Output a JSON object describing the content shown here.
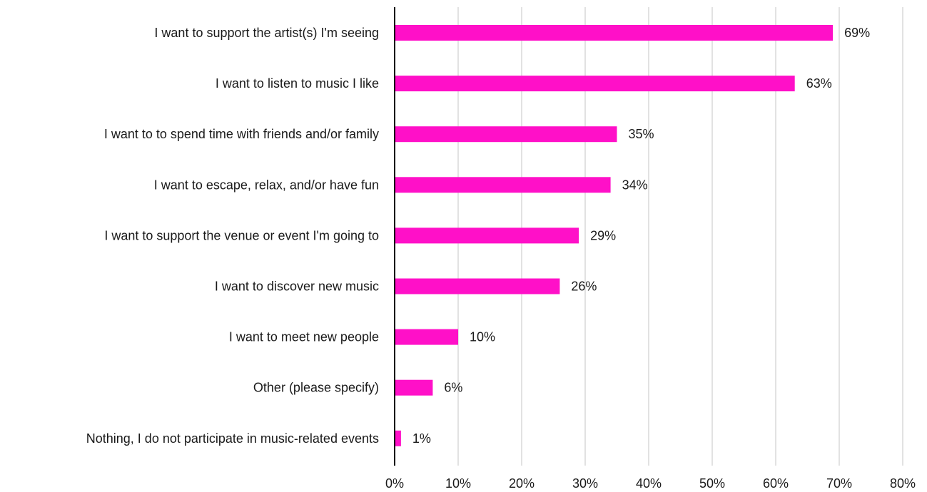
{
  "chart_data": {
    "type": "bar",
    "orientation": "horizontal",
    "categories": [
      "I want to support the artist(s) I'm seeing",
      "I want to listen to music I like",
      "I want to to spend time with friends and/or family",
      "I want to escape, relax, and/or have fun",
      "I want to support the venue or event I'm going to",
      "I want to discover new music",
      "I want to meet new people",
      "Other (please specify)",
      "Nothing, I do not participate in music-related events"
    ],
    "values": [
      69,
      63,
      35,
      34,
      29,
      26,
      10,
      6,
      1
    ],
    "data_labels": [
      "69%",
      "63%",
      "35%",
      "34%",
      "29%",
      "26%",
      "10%",
      "6%",
      "1%"
    ],
    "xlim": [
      0,
      80
    ],
    "x_ticks": [
      0,
      10,
      20,
      30,
      40,
      50,
      60,
      70,
      80
    ],
    "x_tick_labels": [
      "0%",
      "10%",
      "20%",
      "30%",
      "40%",
      "50%",
      "60%",
      "70%",
      "80%"
    ],
    "title": "",
    "xlabel": "",
    "ylabel": "",
    "grid": "vertical",
    "legend": "none",
    "colors": {
      "bar": "#FF10C8",
      "grid": "#d9d9d9",
      "axis": "#000000",
      "text": "#1a1a1a"
    }
  }
}
